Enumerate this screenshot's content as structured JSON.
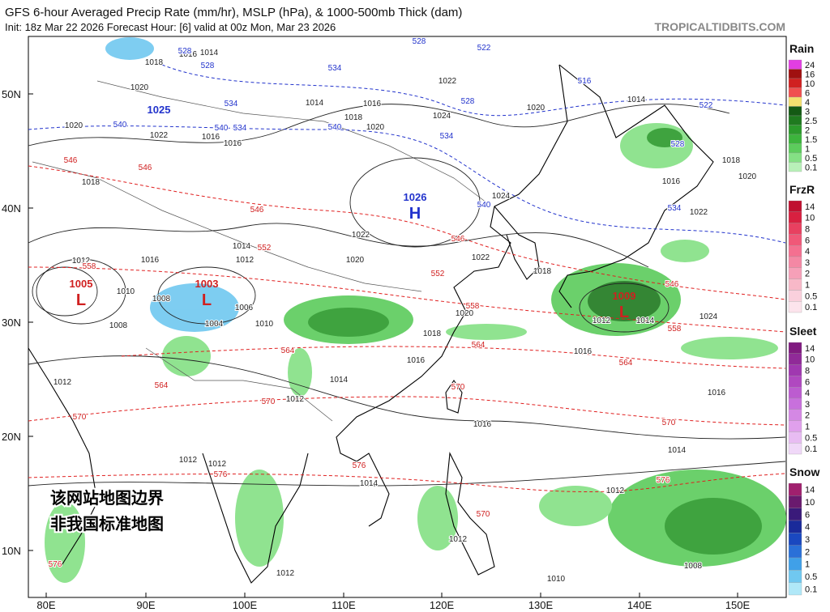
{
  "header": {
    "title": "GFS 6-hour Averaged Precip Rate (mm/hr), MSLP (hPa), & 1000-500mb Thick (dam)",
    "subtitle": "Init: 18z Mar 22 2026   Forecast Hour: [6]   valid at 00z Mon, Mar 23 2026",
    "site": "TROPICALTIDBITS.COM"
  },
  "axes": {
    "lat_labels": [
      "50N",
      "40N",
      "30N",
      "20N",
      "10N"
    ],
    "lon_labels": [
      "80E",
      "90E",
      "100E",
      "110E",
      "120E",
      "130E",
      "140E",
      "150E"
    ]
  },
  "notice": [
    "该网站地图边界",
    "非我国标准地图"
  ],
  "pressure_centers": [
    {
      "value": "1025",
      "letter": "",
      "color": "#2233cc"
    },
    {
      "value": "1026",
      "letter": "H",
      "color": "#2233cc"
    },
    {
      "value": "1005",
      "letter": "L",
      "color": "#d02020"
    },
    {
      "value": "1003",
      "letter": "L",
      "color": "#d02020"
    },
    {
      "value": "1009",
      "letter": "L",
      "color": "#d02020"
    }
  ],
  "isobar_labels": [
    "1016",
    "1014",
    "1018",
    "1020",
    "1020",
    "1022",
    "1016",
    "1016",
    "1014",
    "1018",
    "1016",
    "1020",
    "1024",
    "1022",
    "1020",
    "1014",
    "1018",
    "1020",
    "1016",
    "1022",
    "1024",
    "1022",
    "1020",
    "1022",
    "1018",
    "1020",
    "1018",
    "1016",
    "1014",
    "1012",
    "1016",
    "1012",
    "1014",
    "1024",
    "1016",
    "1014",
    "1012",
    "1014",
    "1012",
    "1012",
    "1012",
    "1010",
    "1008",
    "1012",
    "1012",
    "1016",
    "1018",
    "1016",
    "1012",
    "1014",
    "1010",
    "1008",
    "1006",
    "1004",
    "1010",
    "1012",
    "1008"
  ],
  "thickness_labels_red": [
    "546",
    "546",
    "546",
    "552",
    "558",
    "552",
    "546",
    "558",
    "564",
    "570",
    "564",
    "570",
    "576",
    "576",
    "576",
    "564",
    "558",
    "546",
    "570",
    "576",
    "570",
    "564",
    "570"
  ],
  "thickness_labels_blue": [
    "528",
    "522",
    "534",
    "528",
    "534",
    "540",
    "540",
    "534",
    "528",
    "540",
    "534",
    "516",
    "522",
    "528",
    "540",
    "534",
    "528"
  ],
  "legends": [
    {
      "title": "Rain",
      "labels": [
        "24",
        "16",
        "10",
        "6",
        "4",
        "3",
        "2.5",
        "2",
        "1.5",
        "1",
        "0.5",
        "0.1"
      ],
      "colors": [
        "#e23ee2",
        "#a01010",
        "#d02020",
        "#f05050",
        "#f4e070",
        "#145a14",
        "#1f7a1f",
        "#2b9a2b",
        "#3cb43c",
        "#5ccc5c",
        "#84e084",
        "#b8f0b8"
      ]
    },
    {
      "title": "FrzR",
      "labels": [
        "14",
        "10",
        "8",
        "6",
        "4",
        "3",
        "2",
        "1",
        "0.5",
        "0.1"
      ],
      "colors": [
        "#c01030",
        "#d82040",
        "#e84060",
        "#f05878",
        "#f47090",
        "#f488a4",
        "#f6a0b8",
        "#f8b8c8",
        "#fad0dc",
        "#fce4ec"
      ]
    },
    {
      "title": "Sleet",
      "labels": [
        "14",
        "10",
        "8",
        "6",
        "4",
        "3",
        "2",
        "1",
        "0.5",
        "0.1"
      ],
      "colors": [
        "#801a80",
        "#902a98",
        "#a038b0",
        "#b048c0",
        "#bc5cd0",
        "#c870dc",
        "#d488e4",
        "#e0a0ec",
        "#e8bcf2",
        "#f0d8f8"
      ]
    },
    {
      "title": "Snow",
      "labels": [
        "14",
        "10",
        "6",
        "4",
        "3",
        "2",
        "1",
        "0.5",
        "0.1"
      ],
      "colors": [
        "#a0206e",
        "#6a1a6e",
        "#3a1a7a",
        "#1a2a9a",
        "#1a48c0",
        "#2a70d8",
        "#40a0e8",
        "#70c8f0",
        "#b0e8f8"
      ]
    }
  ]
}
